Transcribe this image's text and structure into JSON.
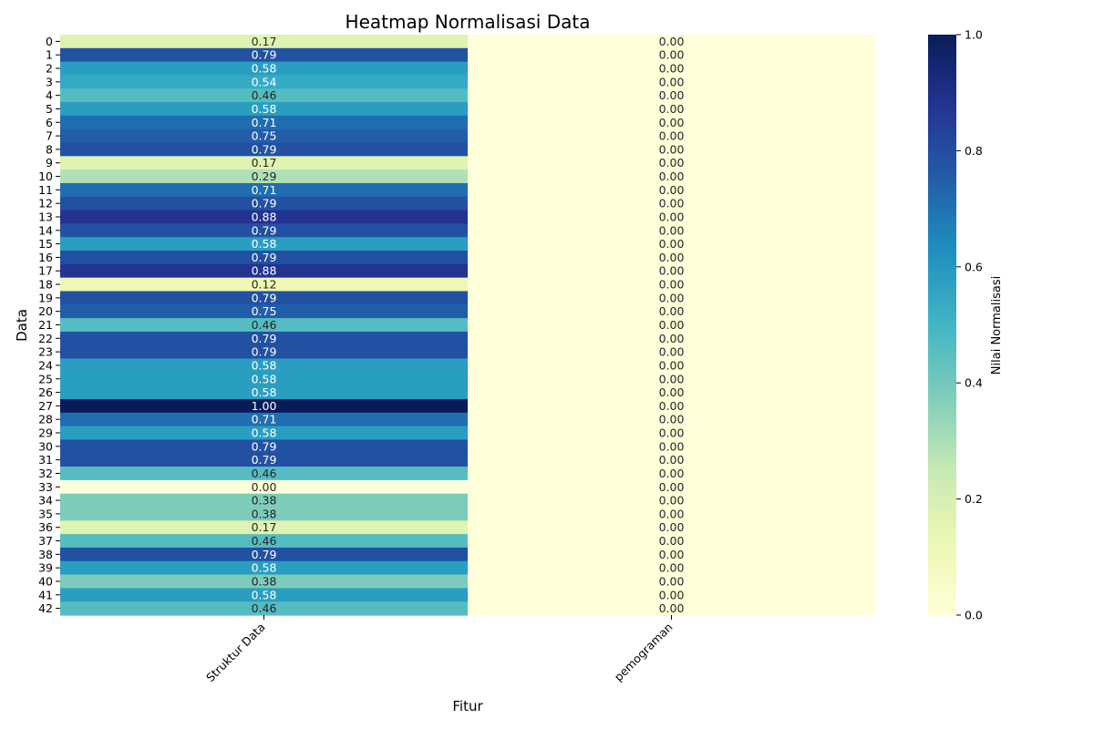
{
  "chart_data": {
    "type": "heatmap",
    "title": "Heatmap Normalisasi Data",
    "xlabel": "Fitur",
    "ylabel": "Data",
    "columns": [
      "Struktur Data",
      "pemograman"
    ],
    "rows": [
      "0",
      "1",
      "2",
      "3",
      "4",
      "5",
      "6",
      "7",
      "8",
      "9",
      "10",
      "11",
      "12",
      "13",
      "14",
      "15",
      "16",
      "17",
      "18",
      "19",
      "20",
      "21",
      "22",
      "23",
      "24",
      "25",
      "26",
      "27",
      "28",
      "29",
      "30",
      "31",
      "32",
      "33",
      "34",
      "35",
      "36",
      "37",
      "38",
      "39",
      "40",
      "41",
      "42"
    ],
    "values": [
      [
        0.17,
        0.0
      ],
      [
        0.79,
        0.0
      ],
      [
        0.58,
        0.0
      ],
      [
        0.54,
        0.0
      ],
      [
        0.46,
        0.0
      ],
      [
        0.58,
        0.0
      ],
      [
        0.71,
        0.0
      ],
      [
        0.75,
        0.0
      ],
      [
        0.79,
        0.0
      ],
      [
        0.17,
        0.0
      ],
      [
        0.29,
        0.0
      ],
      [
        0.71,
        0.0
      ],
      [
        0.79,
        0.0
      ],
      [
        0.88,
        0.0
      ],
      [
        0.79,
        0.0
      ],
      [
        0.58,
        0.0
      ],
      [
        0.79,
        0.0
      ],
      [
        0.88,
        0.0
      ],
      [
        0.12,
        0.0
      ],
      [
        0.79,
        0.0
      ],
      [
        0.75,
        0.0
      ],
      [
        0.46,
        0.0
      ],
      [
        0.79,
        0.0
      ],
      [
        0.79,
        0.0
      ],
      [
        0.58,
        0.0
      ],
      [
        0.58,
        0.0
      ],
      [
        0.58,
        0.0
      ],
      [
        1.0,
        0.0
      ],
      [
        0.71,
        0.0
      ],
      [
        0.58,
        0.0
      ],
      [
        0.79,
        0.0
      ],
      [
        0.79,
        0.0
      ],
      [
        0.46,
        0.0
      ],
      [
        0.0,
        0.0
      ],
      [
        0.38,
        0.0
      ],
      [
        0.38,
        0.0
      ],
      [
        0.17,
        0.0
      ],
      [
        0.46,
        0.0
      ],
      [
        0.79,
        0.0
      ],
      [
        0.58,
        0.0
      ],
      [
        0.38,
        0.0
      ],
      [
        0.58,
        0.0
      ],
      [
        0.46,
        0.0
      ]
    ],
    "value_format": "0.00",
    "colormap": "YlGnBu",
    "vmin": 0.0,
    "vmax": 1.0,
    "colorbar": {
      "label": "Nilai Normalisasi",
      "ticks": [
        "0.0",
        "0.2",
        "0.4",
        "0.6",
        "0.8",
        "1.0"
      ]
    }
  }
}
